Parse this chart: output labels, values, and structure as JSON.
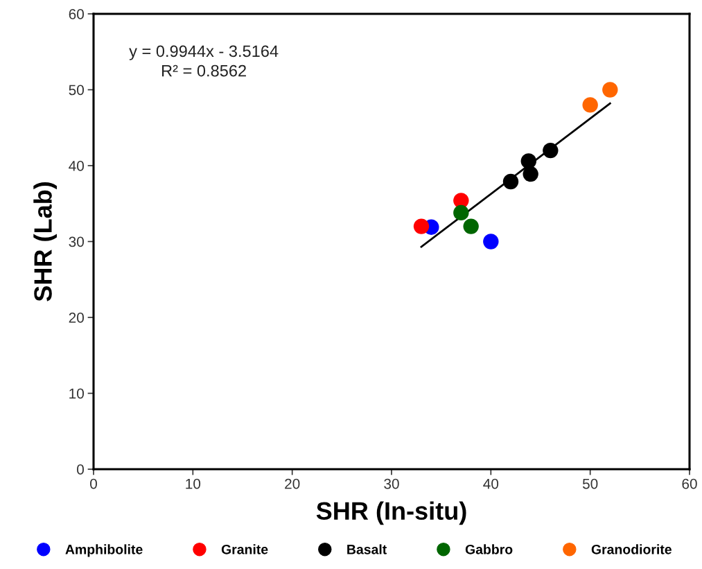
{
  "chart_data": {
    "type": "scatter",
    "xlabel": "SHR (In-situ)",
    "ylabel": "SHR (Lab)",
    "xlim": [
      0,
      60
    ],
    "xticks": [
      0,
      10,
      20,
      30,
      40,
      50,
      60
    ],
    "ylim": [
      0,
      60
    ],
    "yticks": [
      0,
      10,
      20,
      30,
      40,
      50,
      60
    ],
    "grid": false,
    "legend": "bottom",
    "marker": "circle",
    "annotations": [
      "y = 0.9944x - 3.5164",
      "R² = 0.8562"
    ],
    "series": [
      {
        "name": "Amphibolite",
        "color": "#0000ff",
        "x": [
          34,
          40
        ],
        "values": [
          31.9,
          30
        ]
      },
      {
        "name": "Granite",
        "color": "#ff0000",
        "x": [
          33,
          37
        ],
        "values": [
          32,
          35.4
        ]
      },
      {
        "name": "Basalt",
        "color": "#000000",
        "x": [
          42,
          43.8,
          44,
          46
        ],
        "values": [
          37.9,
          40.6,
          38.9,
          42
        ]
      },
      {
        "name": "Gabbro",
        "color": "#006600",
        "x": [
          37,
          38
        ],
        "values": [
          33.8,
          32
        ]
      },
      {
        "name": "Granodiorite",
        "color": "#ff6600",
        "x": [
          50,
          52
        ],
        "values": [
          48,
          50
        ]
      },
      {
        "type": "line",
        "marker": "none",
        "color": "#000000",
        "x": [
          33,
          52
        ],
        "values": [
          29.3,
          48.2
        ]
      }
    ]
  }
}
